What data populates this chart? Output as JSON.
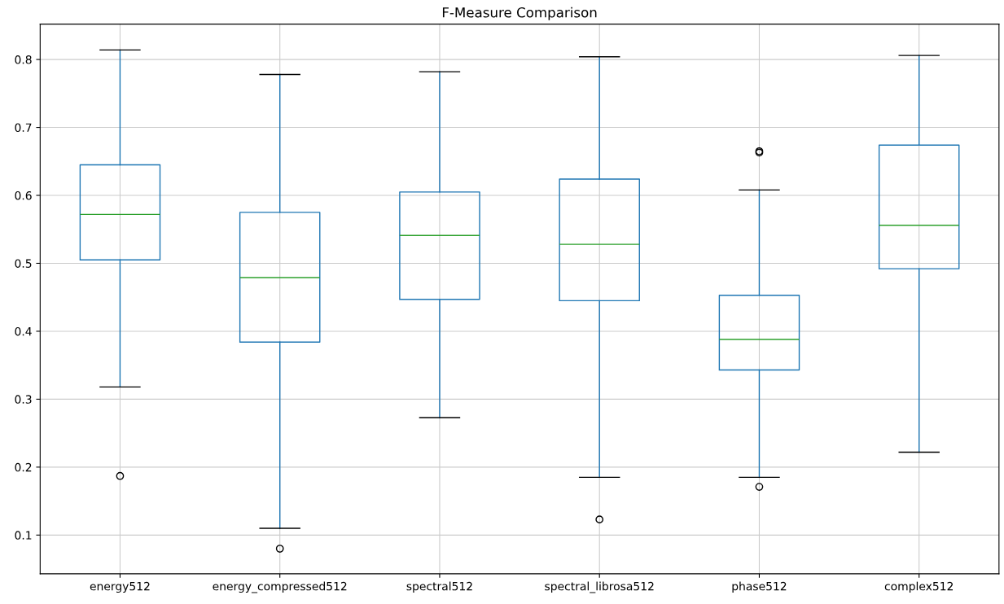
{
  "chart_data": {
    "type": "box",
    "title": "F-Measure Comparison",
    "categories": [
      "energy512",
      "energy_compressed512",
      "spectral512",
      "spectral_librosa512",
      "phase512",
      "complex512"
    ],
    "boxes": [
      {
        "low": 0.318,
        "q1": 0.505,
        "median": 0.572,
        "q3": 0.645,
        "high": 0.814,
        "outliers": [
          0.187
        ]
      },
      {
        "low": 0.11,
        "q1": 0.384,
        "median": 0.479,
        "q3": 0.575,
        "high": 0.778,
        "outliers": [
          0.08
        ]
      },
      {
        "low": 0.273,
        "q1": 0.447,
        "median": 0.541,
        "q3": 0.605,
        "high": 0.782
      },
      {
        "low": 0.185,
        "q1": 0.445,
        "median": 0.528,
        "q3": 0.624,
        "high": 0.804,
        "outliers": [
          0.123
        ]
      },
      {
        "low": 0.185,
        "q1": 0.343,
        "median": 0.388,
        "q3": 0.453,
        "high": 0.608,
        "outliers": [
          0.171,
          0.663,
          0.665
        ]
      },
      {
        "low": 0.222,
        "q1": 0.492,
        "median": 0.556,
        "q3": 0.674,
        "high": 0.806
      }
    ],
    "color": "#1f77b4",
    "ylim": [
      0.043,
      0.852
    ],
    "yticks": [
      0.1,
      0.2,
      0.3,
      0.4,
      0.5,
      0.6,
      0.7,
      0.8
    ],
    "grid": true
  }
}
